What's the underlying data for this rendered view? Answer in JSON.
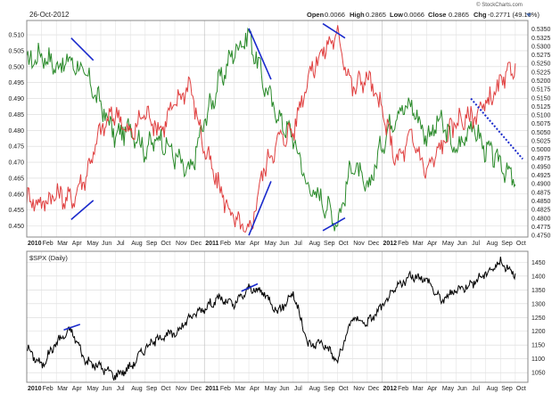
{
  "header": {
    "date": "26-Oct-2012",
    "brand": "© StockCharts.com",
    "open_label": "Open",
    "open_value": "0.0066",
    "high_label": "High",
    "high_value": "0.2865",
    "low_label": "Low",
    "low_value": "0.0066",
    "close_label": "Close",
    "close_value": "0.2865",
    "chg_label": "Chg",
    "chg_value": "-0.2771 (49.16%)"
  },
  "chart_data": [
    {
      "type": "line",
      "name": "top-panel",
      "x_range": [
        "2010-01",
        "2012-10"
      ],
      "xtick_labels": [
        "2010",
        "Feb",
        "Mar",
        "Apr",
        "May",
        "Jun",
        "Jul",
        "Aug",
        "Sep",
        "Oct",
        "Nov",
        "Dec",
        "2011",
        "Feb",
        "Mar",
        "Apr",
        "May",
        "Jun",
        "Jul",
        "Aug",
        "Sep",
        "Oct",
        "Nov",
        "Dec",
        "2012",
        "Feb",
        "Mar",
        "Apr",
        "May",
        "Jun",
        "Jul",
        "Aug",
        "Sep",
        "Oct"
      ],
      "left_axis": {
        "ylim": [
          0.4465,
          0.5145
        ],
        "ticks": [
          "0.510",
          "0.505",
          "0.500",
          "0.495",
          "0.490",
          "0.485",
          "0.480",
          "0.475",
          "0.470",
          "0.465",
          "0.460",
          "0.455",
          "0.450"
        ]
      },
      "right_axis": {
        "ylim": [
          0.4745,
          0.5375
        ],
        "ticks": [
          "0.5350",
          "0.5325",
          "0.5300",
          "0.5275",
          "0.5250",
          "0.5225",
          "0.5200",
          "0.5175",
          "0.5150",
          "0.5125",
          "0.5100",
          "0.5075",
          "0.5050",
          "0.5025",
          "0.5000",
          "0.4975",
          "0.4950",
          "0.4925",
          "0.4900",
          "0.4875",
          "0.4850",
          "0.4825",
          "0.4800",
          "0.4775",
          "0.4750"
        ]
      },
      "series": [
        {
          "color": "#2a8a2a",
          "points": [
            [
              "2010-01",
              0.501
            ],
            [
              "2010-02",
              0.504
            ],
            [
              "2010-03",
              0.5
            ],
            [
              "2010-04",
              0.502
            ],
            [
              "2010-05",
              0.497
            ],
            [
              "2010-06",
              0.488
            ],
            [
              "2010-07",
              0.478
            ],
            [
              "2010-08",
              0.481
            ],
            [
              "2010-09",
              0.474
            ],
            [
              "2010-10",
              0.478
            ],
            [
              "2010-11",
              0.472
            ],
            [
              "2010-12",
              0.466
            ],
            [
              "2011-01",
              0.483
            ],
            [
              "2011-02",
              0.495
            ],
            [
              "2011-03",
              0.505
            ],
            [
              "2011-04",
              0.51
            ],
            [
              "2011-05",
              0.495
            ],
            [
              "2011-06",
              0.484
            ],
            [
              "2011-07",
              0.478
            ],
            [
              "2011-08",
              0.462
            ],
            [
              "2011-09",
              0.458
            ],
            [
              "2011-10",
              0.451
            ],
            [
              "2011-11",
              0.47
            ],
            [
              "2011-12",
              0.461
            ],
            [
              "2012-01",
              0.476
            ],
            [
              "2012-02",
              0.486
            ],
            [
              "2012-03",
              0.488
            ],
            [
              "2012-04",
              0.478
            ],
            [
              "2012-05",
              0.483
            ],
            [
              "2012-06",
              0.473
            ],
            [
              "2012-07",
              0.482
            ],
            [
              "2012-08",
              0.474
            ],
            [
              "2012-09",
              0.47
            ],
            [
              "2012-10",
              0.463
            ]
          ]
        },
        {
          "color": "#e04040",
          "points": [
            [
              "2010-01",
              0.459
            ],
            [
              "2010-02",
              0.457
            ],
            [
              "2010-03",
              0.46
            ],
            [
              "2010-04",
              0.458
            ],
            [
              "2010-05",
              0.466
            ],
            [
              "2010-06",
              0.48
            ],
            [
              "2010-07",
              0.486
            ],
            [
              "2010-08",
              0.478
            ],
            [
              "2010-09",
              0.486
            ],
            [
              "2010-10",
              0.48
            ],
            [
              "2010-11",
              0.488
            ],
            [
              "2010-12",
              0.495
            ],
            [
              "2011-01",
              0.474
            ],
            [
              "2011-02",
              0.462
            ],
            [
              "2011-03",
              0.452
            ],
            [
              "2011-04",
              0.447
            ],
            [
              "2011-05",
              0.468
            ],
            [
              "2011-06",
              0.477
            ],
            [
              "2011-07",
              0.48
            ],
            [
              "2011-08",
              0.497
            ],
            [
              "2011-09",
              0.505
            ],
            [
              "2011-10",
              0.51
            ],
            [
              "2011-11",
              0.493
            ],
            [
              "2011-12",
              0.497
            ],
            [
              "2012-01",
              0.486
            ],
            [
              "2012-02",
              0.47
            ],
            [
              "2012-03",
              0.478
            ],
            [
              "2012-04",
              0.467
            ],
            [
              "2012-05",
              0.475
            ],
            [
              "2012-06",
              0.483
            ],
            [
              "2012-07",
              0.484
            ],
            [
              "2012-08",
              0.488
            ],
            [
              "2012-09",
              0.494
            ],
            [
              "2012-10",
              0.501
            ]
          ]
        }
      ],
      "annotations": [
        {
          "type": "trendline",
          "color": "#1a2acc",
          "from": [
            "2010-04",
            0.509
          ],
          "to": [
            "2010-05",
            0.502
          ]
        },
        {
          "type": "trendline",
          "color": "#1a2acc",
          "from": [
            "2010-04",
            0.452
          ],
          "to": [
            "2010-05",
            0.458
          ]
        },
        {
          "type": "trendline",
          "color": "#1a2acc",
          "from": [
            "2011-04",
            0.512
          ],
          "to": [
            "2011-05",
            0.496
          ]
        },
        {
          "type": "trendline",
          "color": "#1a2acc",
          "from": [
            "2011-04",
            0.447
          ],
          "to": [
            "2011-05",
            0.464
          ]
        },
        {
          "type": "trendline",
          "color": "#1a2acc",
          "from": [
            "2011-09",
            0.5135
          ],
          "to": [
            "2011-10",
            0.509
          ]
        },
        {
          "type": "trendline",
          "color": "#1a2acc",
          "from": [
            "2011-09",
            0.4485
          ],
          "to": [
            "2011-10",
            0.4525
          ]
        },
        {
          "type": "trendline",
          "color": "#1a2acc",
          "dashed": true,
          "from": [
            "2012-07",
            0.49
          ],
          "to": [
            "2012-10",
            0.471
          ]
        }
      ]
    },
    {
      "type": "line",
      "name": "bottom-panel",
      "legend": "$SPX (Daily)",
      "x_range": [
        "2010-01",
        "2012-10"
      ],
      "xtick_labels": [
        "2010",
        "Feb",
        "Mar",
        "Apr",
        "May",
        "Jun",
        "Jul",
        "Aug",
        "Sep",
        "Oct",
        "Nov",
        "Dec",
        "2011",
        "Feb",
        "Mar",
        "Apr",
        "May",
        "Jun",
        "Jul",
        "Aug",
        "Sep",
        "Oct",
        "Nov",
        "Dec",
        "2012",
        "Feb",
        "Mar",
        "Apr",
        "May",
        "Jun",
        "Jul",
        "Aug",
        "Sep",
        "Oct"
      ],
      "ylim": [
        1015,
        1490
      ],
      "ytick_labels": [
        "1450",
        "1400",
        "1350",
        "1300",
        "1250",
        "1200",
        "1150",
        "1100",
        "1050"
      ],
      "ytick_values": [
        1450,
        1400,
        1350,
        1300,
        1250,
        1200,
        1150,
        1100,
        1050
      ],
      "series": [
        {
          "color": "#000000",
          "points": [
            [
              "2010-01",
              1140
            ],
            [
              "2010-02",
              1075
            ],
            [
              "2010-03",
              1160
            ],
            [
              "2010-04",
              1205
            ],
            [
              "2010-05",
              1090
            ],
            [
              "2010-06",
              1070
            ],
            [
              "2010-07",
              1040
            ],
            [
              "2010-08",
              1070
            ],
            [
              "2010-09",
              1140
            ],
            [
              "2010-10",
              1180
            ],
            [
              "2010-11",
              1190
            ],
            [
              "2010-12",
              1250
            ],
            [
              "2011-01",
              1285
            ],
            [
              "2011-02",
              1320
            ],
            [
              "2011-03",
              1295
            ],
            [
              "2011-04",
              1355
            ],
            [
              "2011-05",
              1340
            ],
            [
              "2011-06",
              1270
            ],
            [
              "2011-07",
              1340
            ],
            [
              "2011-08",
              1150
            ],
            [
              "2011-09",
              1160
            ],
            [
              "2011-10",
              1090
            ],
            [
              "2011-11",
              1250
            ],
            [
              "2011-12",
              1230
            ],
            [
              "2012-01",
              1290
            ],
            [
              "2012-02",
              1360
            ],
            [
              "2012-03",
              1400
            ],
            [
              "2012-04",
              1390
            ],
            [
              "2012-05",
              1310
            ],
            [
              "2012-06",
              1350
            ],
            [
              "2012-07",
              1370
            ],
            [
              "2012-08",
              1410
            ],
            [
              "2012-09",
              1450
            ],
            [
              "2012-10",
              1410
            ]
          ]
        }
      ],
      "annotations": [
        {
          "type": "trendline",
          "color": "#1a2acc",
          "from": [
            "2010-03",
            1205
          ],
          "to": [
            "2010-04",
            1225
          ]
        },
        {
          "type": "trendline",
          "color": "#1a2acc",
          "from": [
            "2011-03",
            1345
          ],
          "to": [
            "2011-04",
            1372
          ]
        }
      ]
    }
  ]
}
